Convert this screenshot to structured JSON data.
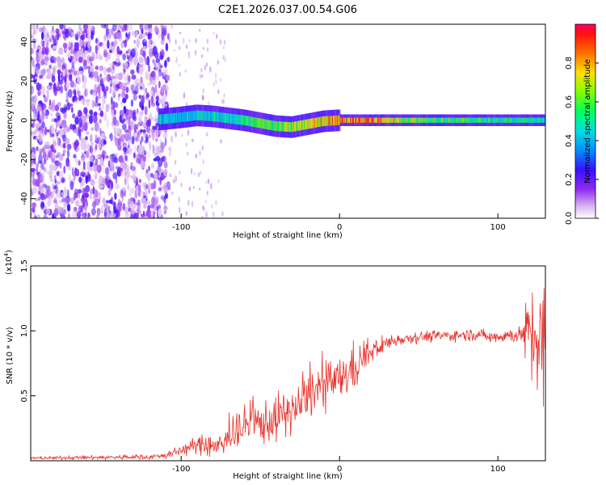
{
  "title": "C2E1.2026.037.00.54.G06",
  "chart_data": [
    {
      "type": "heatmap",
      "name": "spectrogram",
      "xlabel": "Height of straight line (km)",
      "ylabel": "Frequency (Hz)",
      "xlim": [
        -195,
        130
      ],
      "ylim": [
        -50,
        49
      ],
      "xticks": [
        -100,
        0,
        100
      ],
      "xtick_labels": [
        "-100",
        "0",
        "100"
      ],
      "yticks": [
        -40,
        -20,
        0,
        20,
        40
      ],
      "ytick_labels": [
        "-40",
        "-20",
        "0",
        "20",
        "40"
      ],
      "ridge": {
        "x": [
          -112,
          -100,
          -90,
          -80,
          -70,
          -60,
          -50,
          -40,
          -30,
          -20,
          -10,
          0,
          10,
          20,
          40,
          60,
          80,
          100,
          120,
          130
        ],
        "frequency": [
          0.5,
          1.5,
          2.5,
          2,
          1,
          0,
          -1.5,
          -3,
          -3.5,
          -2,
          -0.5,
          0,
          0,
          0,
          0,
          0,
          0,
          0,
          0,
          0
        ],
        "amplitude": [
          0.45,
          0.45,
          0.5,
          0.5,
          0.5,
          0.55,
          0.6,
          0.65,
          0.7,
          0.75,
          0.8,
          0.85,
          0.9,
          0.92,
          0.7,
          0.65,
          0.6,
          0.55,
          0.55,
          0.5
        ]
      },
      "colorbar": {
        "label": "Normalized spectral amplitude",
        "range": [
          0,
          1
        ],
        "ticks": [
          0.0,
          0.2,
          0.4,
          0.6,
          0.8
        ],
        "tick_labels": [
          "0.0",
          "0.2",
          "0.4",
          "0.6",
          "0.8"
        ]
      }
    },
    {
      "type": "line",
      "name": "snr",
      "xlabel": "Height of straight line (km)",
      "ylabel": "SNR (10 * v/v)",
      "multiplier_label": "(x10",
      "multiplier_exp": "4",
      "xlim": [
        -195,
        130
      ],
      "ylim": [
        0,
        1.5
      ],
      "xticks": [
        -100,
        0,
        100
      ],
      "xtick_labels": [
        "-100",
        "0",
        "100"
      ],
      "yticks": [
        0.5,
        1.0,
        1.5
      ],
      "ytick_labels": [
        "0.5",
        "1.0",
        "1.5"
      ],
      "color": "#e8302a",
      "trend": {
        "x": [
          -195,
          -120,
          -110,
          -100,
          -90,
          -80,
          -75,
          -70,
          -65,
          -55,
          -45,
          -35,
          -25,
          -20,
          -15,
          -10,
          -5,
          0,
          5,
          10,
          15,
          25,
          35,
          45,
          60,
          80,
          90,
          95,
          100,
          110,
          118,
          122,
          126,
          130
        ],
        "snr": [
          0.02,
          0.03,
          0.04,
          0.08,
          0.12,
          0.12,
          0.1,
          0.18,
          0.25,
          0.28,
          0.3,
          0.36,
          0.42,
          0.5,
          0.55,
          0.56,
          0.6,
          0.62,
          0.68,
          0.72,
          0.8,
          0.88,
          0.93,
          0.95,
          0.96,
          0.97,
          0.97,
          0.95,
          0.96,
          0.97,
          0.97,
          0.95,
          0.9,
          0.85
        ]
      },
      "noise": {
        "x": [
          -195,
          -110,
          -90,
          -70,
          -60,
          -40,
          -20,
          -10,
          0,
          10,
          20,
          40,
          90,
          100,
          115,
          120,
          130
        ],
        "amplitude": [
          0.01,
          0.02,
          0.06,
          0.12,
          0.14,
          0.16,
          0.16,
          0.17,
          0.15,
          0.18,
          0.08,
          0.04,
          0.04,
          0.05,
          0.06,
          0.35,
          0.5
        ]
      }
    }
  ]
}
